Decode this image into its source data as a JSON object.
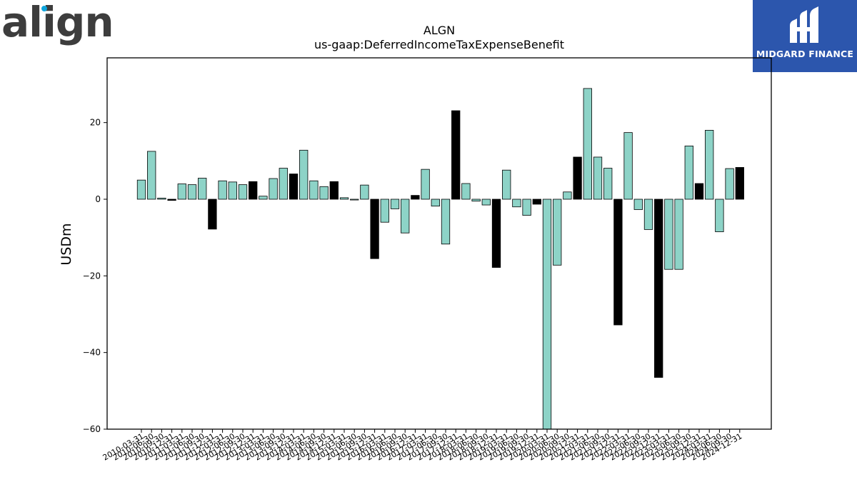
{
  "logo_left": "align",
  "logo_right": "MIDGARD FINANCE",
  "colors": {
    "bar_primary": "#8dd3c7",
    "bar_highlight": "#000000",
    "logo_bg": "#2c56ad",
    "logo_dot": "#0ea5dd"
  },
  "chart_data": {
    "type": "bar",
    "title": "ALGN",
    "subtitle": "us-gaap:DeferredIncomeTaxExpenseBenefit",
    "xlabel": "",
    "ylabel": "USDm",
    "ylim": [
      -60,
      36
    ],
    "yticks": [
      -60,
      -40,
      -20,
      0,
      20
    ],
    "grid": false,
    "legend": "none",
    "categories": [
      "2010-03-31",
      "2010-06-30",
      "2010-09-30",
      "2010-12-31",
      "2011-03-31",
      "2011-06-30",
      "2011-09-30",
      "2011-12-31",
      "2012-03-31",
      "2012-06-30",
      "2012-09-30",
      "2012-12-31",
      "2013-03-31",
      "2013-06-30",
      "2013-09-30",
      "2013-12-31",
      "2014-03-31",
      "2014-06-30",
      "2014-09-30",
      "2014-12-31",
      "2015-03-31",
      "2015-06-30",
      "2015-09-30",
      "2015-12-31",
      "2016-03-31",
      "2016-06-30",
      "2016-09-30",
      "2016-12-31",
      "2017-03-31",
      "2017-06-30",
      "2017-09-30",
      "2017-12-31",
      "2018-03-31",
      "2018-06-30",
      "2018-09-30",
      "2018-12-31",
      "2019-03-31",
      "2019-06-30",
      "2019-09-30",
      "2019-12-31",
      "2020-03-31",
      "2020-06-30",
      "2020-09-30",
      "2020-12-31",
      "2021-03-31",
      "2021-06-30",
      "2021-09-30",
      "2021-12-31",
      "2022-03-31",
      "2022-06-30",
      "2022-09-30",
      "2022-12-31",
      "2023-03-31",
      "2023-06-30",
      "2023-09-30",
      "2023-12-31",
      "2024-03-31",
      "2024-06-30",
      "2024-09-30",
      "2024-12-31"
    ],
    "values": [
      5.0,
      12.5,
      0.3,
      -0.3,
      4.0,
      3.8,
      5.5,
      -7.8,
      4.8,
      4.5,
      3.8,
      4.6,
      0.8,
      5.4,
      8.1,
      6.6,
      12.8,
      4.8,
      3.3,
      4.6,
      0.4,
      -0.2,
      3.7,
      -15.5,
      -6.0,
      -2.5,
      -8.8,
      1.0,
      7.8,
      -1.8,
      -11.7,
      23.1,
      4.1,
      -0.5,
      -1.5,
      -17.8,
      7.6,
      -2.0,
      -4.2,
      -1.3,
      -60.0,
      -17.2,
      1.9,
      11.0,
      28.9,
      11.0,
      8.1,
      -32.8,
      17.4,
      -2.7,
      -7.9,
      -46.5,
      -18.3,
      -18.3,
      13.9,
      4.1,
      18.0,
      -8.5,
      8.0,
      8.3
    ],
    "highlight": [
      false,
      false,
      false,
      true,
      false,
      false,
      false,
      true,
      false,
      false,
      false,
      true,
      false,
      false,
      false,
      true,
      false,
      false,
      false,
      true,
      false,
      false,
      false,
      true,
      false,
      false,
      false,
      true,
      false,
      false,
      false,
      true,
      false,
      false,
      false,
      true,
      false,
      false,
      false,
      true,
      false,
      false,
      false,
      true,
      false,
      false,
      false,
      true,
      false,
      false,
      false,
      true,
      false,
      false,
      false,
      true,
      false,
      false,
      false,
      true
    ],
    "xtick_labels": [
      "2010-03-31",
      "2010-06-30",
      "2010-09-30",
      "2010-12-31",
      "2011-03-31",
      "2011-06-30",
      "2011-09-30",
      "2011-12-31",
      "2012-03-31",
      "2012-06-30",
      "2012-09-30",
      "2012-12-31",
      "2013-03-31",
      "2013-06-30",
      "2013-09-30",
      "2013-12-31",
      "2014-03-31",
      "2014-06-30",
      "2014-09-30",
      "2014-12-31",
      "2015-03-31",
      "2015-06-30",
      "2015-09-30",
      "2015-12-31",
      "2016-03-31",
      "2016-06-30",
      "2016-09-30",
      "2016-12-31",
      "2017-03-31",
      "2017-06-30",
      "2017-09-30",
      "2017-12-31",
      "2018-03-31",
      "2018-06-30",
      "2018-09-30",
      "2018-12-31",
      "2019-03-31",
      "2019-06-30",
      "2019-09-30",
      "2019-12-31",
      "2020-03-31",
      "2020-06-30",
      "2020-09-30",
      "2020-12-31",
      "2021-03-31",
      "2021-06-30",
      "2021-09-30",
      "2021-12-31",
      "2022-03-31",
      "2022-06-30",
      "2022-09-30",
      "2022-12-31",
      "2023-03-31",
      "2023-06-30",
      "2023-09-30",
      "2023-12-31",
      "2024-03-31",
      "2024-06-30",
      "2024-09-30",
      "2024-12-31"
    ]
  }
}
